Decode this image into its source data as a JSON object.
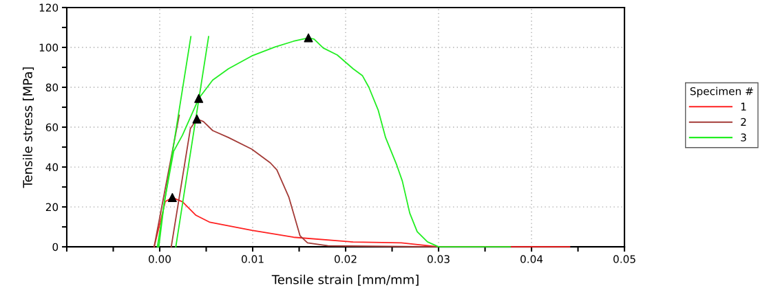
{
  "chart_data": {
    "type": "line",
    "xlabel": "Tensile strain [mm/mm]",
    "ylabel": "Tensile stress [MPa]",
    "legend_title": "Specimen #",
    "xlim": [
      -0.01,
      0.05
    ],
    "ylim": [
      0,
      120
    ],
    "xticks": [
      {
        "value": -0.01,
        "label": null
      },
      {
        "value": -0.005,
        "label": null
      },
      {
        "value": 0.0,
        "label": "0.00"
      },
      {
        "value": 0.005,
        "label": null
      },
      {
        "value": 0.01,
        "label": "0.01"
      },
      {
        "value": 0.015,
        "label": null
      },
      {
        "value": 0.02,
        "label": "0.02"
      },
      {
        "value": 0.025,
        "label": null
      },
      {
        "value": 0.03,
        "label": "0.03"
      },
      {
        "value": 0.035,
        "label": null
      },
      {
        "value": 0.04,
        "label": "0.04"
      },
      {
        "value": 0.045,
        "label": null
      },
      {
        "value": 0.05,
        "label": "0.05"
      }
    ],
    "yticks": [
      0,
      {
        "value": 10,
        "label": null
      },
      20,
      {
        "value": 30,
        "label": null
      },
      40,
      {
        "value": 50,
        "label": null
      },
      60,
      {
        "value": 70,
        "label": null
      },
      80,
      {
        "value": 90,
        "label": null
      },
      100,
      {
        "value": 110,
        "label": null
      },
      120
    ],
    "grid": true,
    "legend": "right",
    "series": [
      {
        "name": "1",
        "color": "#ff2020",
        "x": [
          -0.0006,
          0.0006,
          0.00136,
          0.00245,
          0.0039,
          0.0054,
          0.0099,
          0.0144,
          0.0208,
          0.026,
          0.03,
          0.0441
        ],
        "values": [
          0,
          22.7,
          24.7,
          22.6,
          15.8,
          12.3,
          8.3,
          4.8,
          2.4,
          2.0,
          0,
          0
        ]
      },
      {
        "name": "2",
        "color": "#a33a36",
        "x": [
          0.00124,
          0.0033,
          0.004,
          0.0047,
          0.0057,
          0.0074,
          0.0099,
          0.0119,
          0.0126,
          0.0139,
          0.0151,
          0.0159,
          0.0181,
          0.03
        ],
        "values": [
          0,
          59.3,
          64.1,
          62.8,
          58.3,
          54.8,
          49,
          42.1,
          38.6,
          24.8,
          5.5,
          2,
          0.5,
          0
        ]
      },
      {
        "name": "3",
        "color": "#22ee22",
        "x": [
          -0.0001,
          0.0005,
          0.0015,
          0.00245,
          0.0042,
          0.0057,
          0.0074,
          0.0099,
          0.0124,
          0.0144,
          0.016,
          0.0166,
          0.0176,
          0.0191,
          0.0208,
          0.0218,
          0.0225,
          0.0235,
          0.0243,
          0.0255,
          0.0261,
          0.0269,
          0.0277,
          0.0288,
          0.03,
          0.0377
        ],
        "values": [
          0,
          22.7,
          47.9,
          56,
          74.4,
          83.6,
          89.3,
          95.7,
          100.2,
          103.1,
          104.8,
          104.2,
          99.7,
          96.2,
          89.3,
          85.9,
          80,
          68.6,
          54.8,
          41,
          33,
          16.9,
          7.6,
          2.5,
          0,
          0
        ]
      },
      {
        "type": "line",
        "color": "#a33a36",
        "x": [
          -0.0006,
          0.0021
        ],
        "values": [
          0,
          66
        ]
      },
      {
        "type": "line",
        "color": "#22ee22",
        "x": [
          -0.00025,
          0.00335
        ],
        "values": [
          0,
          105.4
        ]
      },
      {
        "type": "line",
        "color": "#22ee22",
        "x": [
          0.00173,
          0.00526
        ],
        "values": [
          0,
          105.4
        ]
      },
      {
        "type": "scatter",
        "color": "#000000",
        "marker": "triangle",
        "x": [
          0.00136,
          0.004,
          0.0042,
          0.016
        ],
        "values": [
          24.7,
          64.1,
          74.4,
          104.8
        ]
      }
    ]
  }
}
